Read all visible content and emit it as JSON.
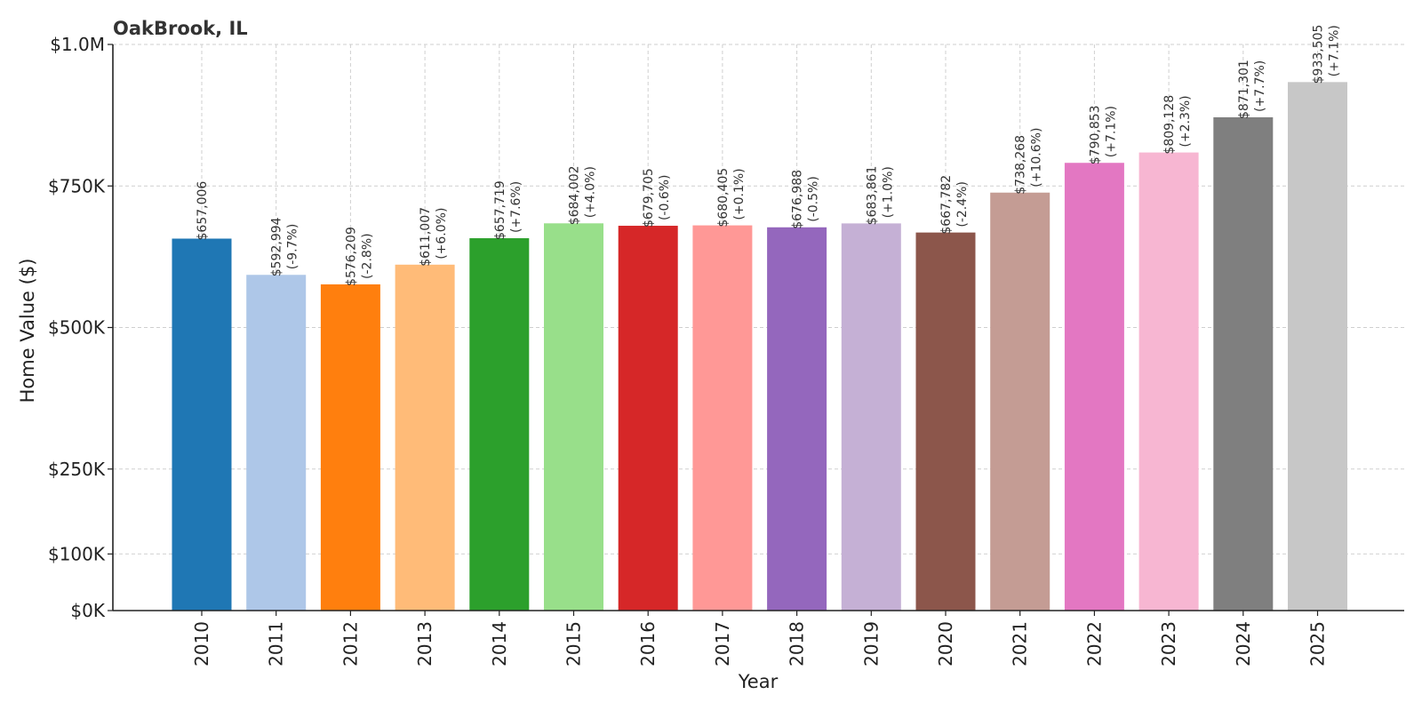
{
  "chart_data": {
    "type": "bar",
    "title": "OakBrook, IL",
    "xlabel": "Year",
    "ylabel": "Home Value ($)",
    "ylim": [
      0,
      1000000
    ],
    "yticks": [
      {
        "value": 0,
        "label": "$0K"
      },
      {
        "value": 100000,
        "label": "$100K"
      },
      {
        "value": 250000,
        "label": "$250K"
      },
      {
        "value": 500000,
        "label": "$500K"
      },
      {
        "value": 750000,
        "label": "$750K"
      },
      {
        "value": 1000000,
        "label": "$1.0M"
      }
    ],
    "grid": true,
    "categories": [
      "2010",
      "2011",
      "2012",
      "2013",
      "2014",
      "2015",
      "2016",
      "2017",
      "2018",
      "2019",
      "2020",
      "2021",
      "2022",
      "2023",
      "2024",
      "2025"
    ],
    "values": [
      657006,
      592994,
      576209,
      611007,
      657719,
      684002,
      679705,
      680405,
      676988,
      683861,
      667782,
      738268,
      790853,
      809128,
      871301,
      933505
    ],
    "value_labels": [
      "$657,006",
      "$592,994",
      "$576,209",
      "$611,007",
      "$657,719",
      "$684,002",
      "$679,705",
      "$680,405",
      "$676,988",
      "$683,861",
      "$667,782",
      "$738,268",
      "$790,853",
      "$809,128",
      "$871,301",
      "$933,505"
    ],
    "change_labels": [
      "",
      "(-9.7%)",
      "(-2.8%)",
      "(+6.0%)",
      "(+7.6%)",
      "(+4.0%)",
      "(-0.6%)",
      "(+0.1%)",
      "(-0.5%)",
      "(+1.0%)",
      "(-2.4%)",
      "(+10.6%)",
      "(+7.1%)",
      "(+2.3%)",
      "(+7.7%)",
      "(+7.1%)"
    ],
    "colors": [
      "#1f77b4",
      "#aec7e8",
      "#ff7f0e",
      "#ffbb78",
      "#2ca02c",
      "#98df8a",
      "#d62728",
      "#ff9896",
      "#9467bd",
      "#c5b0d5",
      "#8c564b",
      "#c49c94",
      "#e377c2",
      "#f7b6d2",
      "#7f7f7f",
      "#c7c7c7"
    ]
  }
}
